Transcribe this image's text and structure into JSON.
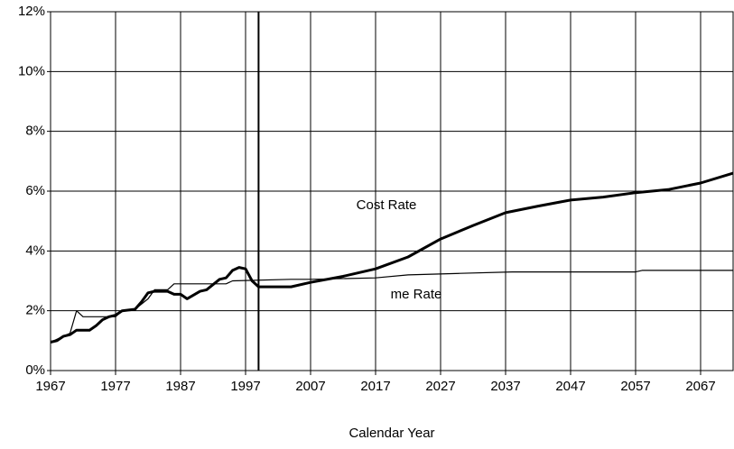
{
  "chart_data": {
    "type": "line",
    "xlabel": "Calendar Year",
    "xlim": [
      1967,
      2072
    ],
    "xticks": [
      1967,
      1977,
      1987,
      1997,
      2007,
      2017,
      2027,
      2037,
      2047,
      2057,
      2067
    ],
    "ylim": [
      0,
      12
    ],
    "yticks": [
      {
        "value": 0,
        "label": "0%"
      },
      {
        "value": 2,
        "label": "2%"
      },
      {
        "value": 4,
        "label": "4%"
      },
      {
        "value": 6,
        "label": "6%"
      },
      {
        "value": 8,
        "label": "8%"
      },
      {
        "value": 10,
        "label": "10%"
      },
      {
        "value": 12,
        "label": "12%"
      }
    ],
    "grid": true,
    "vline": 1999,
    "series": [
      {
        "name": "Cost Rate",
        "color": "#000000",
        "width": 3,
        "x": [
          1967,
          1968,
          1969,
          1970,
          1971,
          1973,
          1974,
          1975,
          1976,
          1977,
          1978,
          1980,
          1981,
          1982,
          1983,
          1985,
          1986,
          1987,
          1988,
          1990,
          1991,
          1993,
          1994,
          1995,
          1996,
          1997,
          1998,
          1999,
          2004,
          2007,
          2012,
          2017,
          2022,
          2027,
          2032,
          2037,
          2042,
          2047,
          2052,
          2057,
          2062,
          2067,
          2072
        ],
        "values": [
          0.95,
          1.0,
          1.15,
          1.2,
          1.35,
          1.35,
          1.5,
          1.7,
          1.8,
          1.85,
          2.0,
          2.05,
          2.3,
          2.6,
          2.65,
          2.65,
          2.55,
          2.55,
          2.4,
          2.65,
          2.7,
          3.05,
          3.1,
          3.35,
          3.45,
          3.4,
          3.0,
          2.8,
          2.8,
          2.95,
          3.15,
          3.4,
          3.8,
          4.4,
          4.85,
          5.28,
          5.5,
          5.7,
          5.8,
          5.95,
          6.05,
          6.27,
          6.6
        ]
      },
      {
        "name": "me Rate",
        "color": "#000000",
        "width": 1.2,
        "x": [
          1967,
          1970,
          1971,
          1972,
          1977,
          1978,
          1980,
          1982,
          1983,
          1985,
          1986,
          1994,
          1995,
          2004,
          2007,
          2017,
          2022,
          2030,
          2038,
          2057,
          2058,
          2072
        ],
        "values": [
          0.95,
          1.25,
          2.0,
          1.8,
          1.8,
          2.0,
          2.05,
          2.4,
          2.7,
          2.7,
          2.9,
          2.9,
          3.0,
          3.05,
          3.05,
          3.1,
          3.2,
          3.25,
          3.3,
          3.3,
          3.35,
          3.35
        ]
      }
    ]
  }
}
